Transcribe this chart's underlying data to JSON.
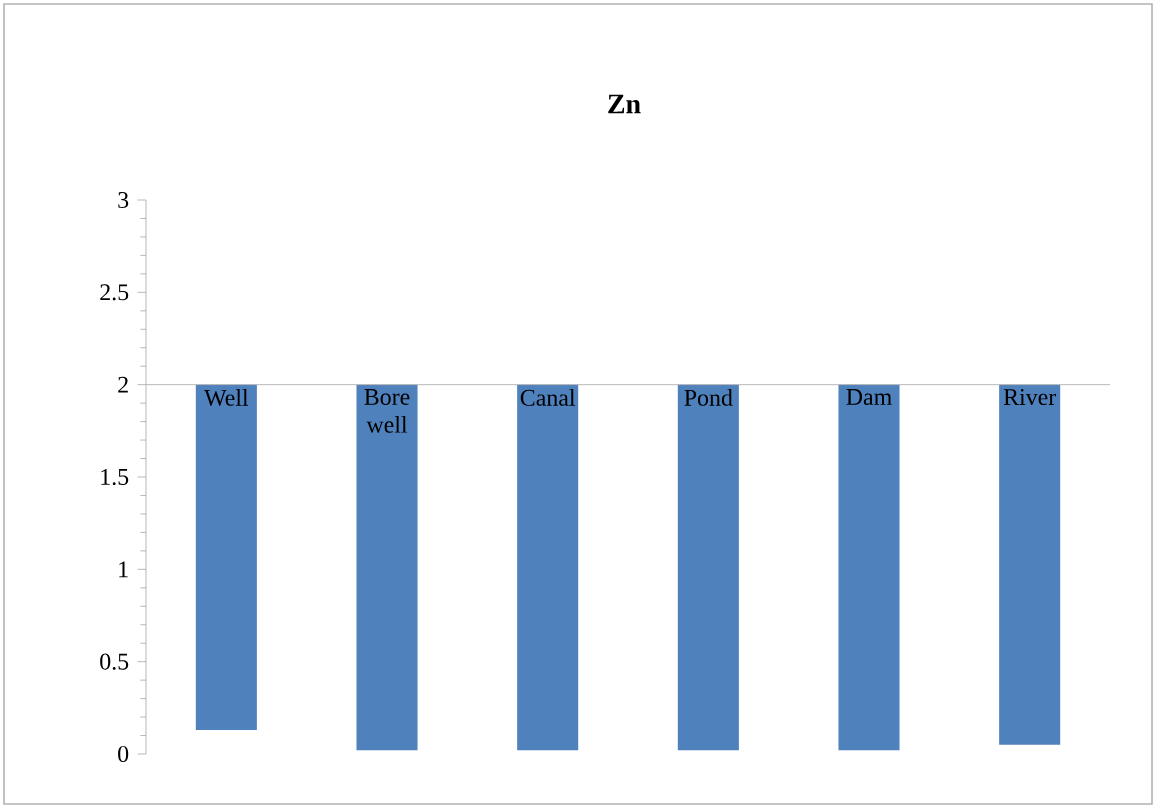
{
  "chart_data": {
    "type": "bar",
    "title": "Zn",
    "categories": [
      "Well",
      "Bore well",
      "Canal",
      "Pond",
      "Dam",
      "River"
    ],
    "base": [
      2,
      2,
      2,
      2,
      2,
      2
    ],
    "values": [
      -1.87,
      -1.98,
      -1.98,
      -1.98,
      -1.98,
      -1.95
    ],
    "color": "#4f81bd",
    "ylim": [
      0,
      3
    ],
    "yticks": [
      0,
      0.5,
      1,
      1.5,
      2,
      2.5,
      3
    ],
    "grid": false
  }
}
